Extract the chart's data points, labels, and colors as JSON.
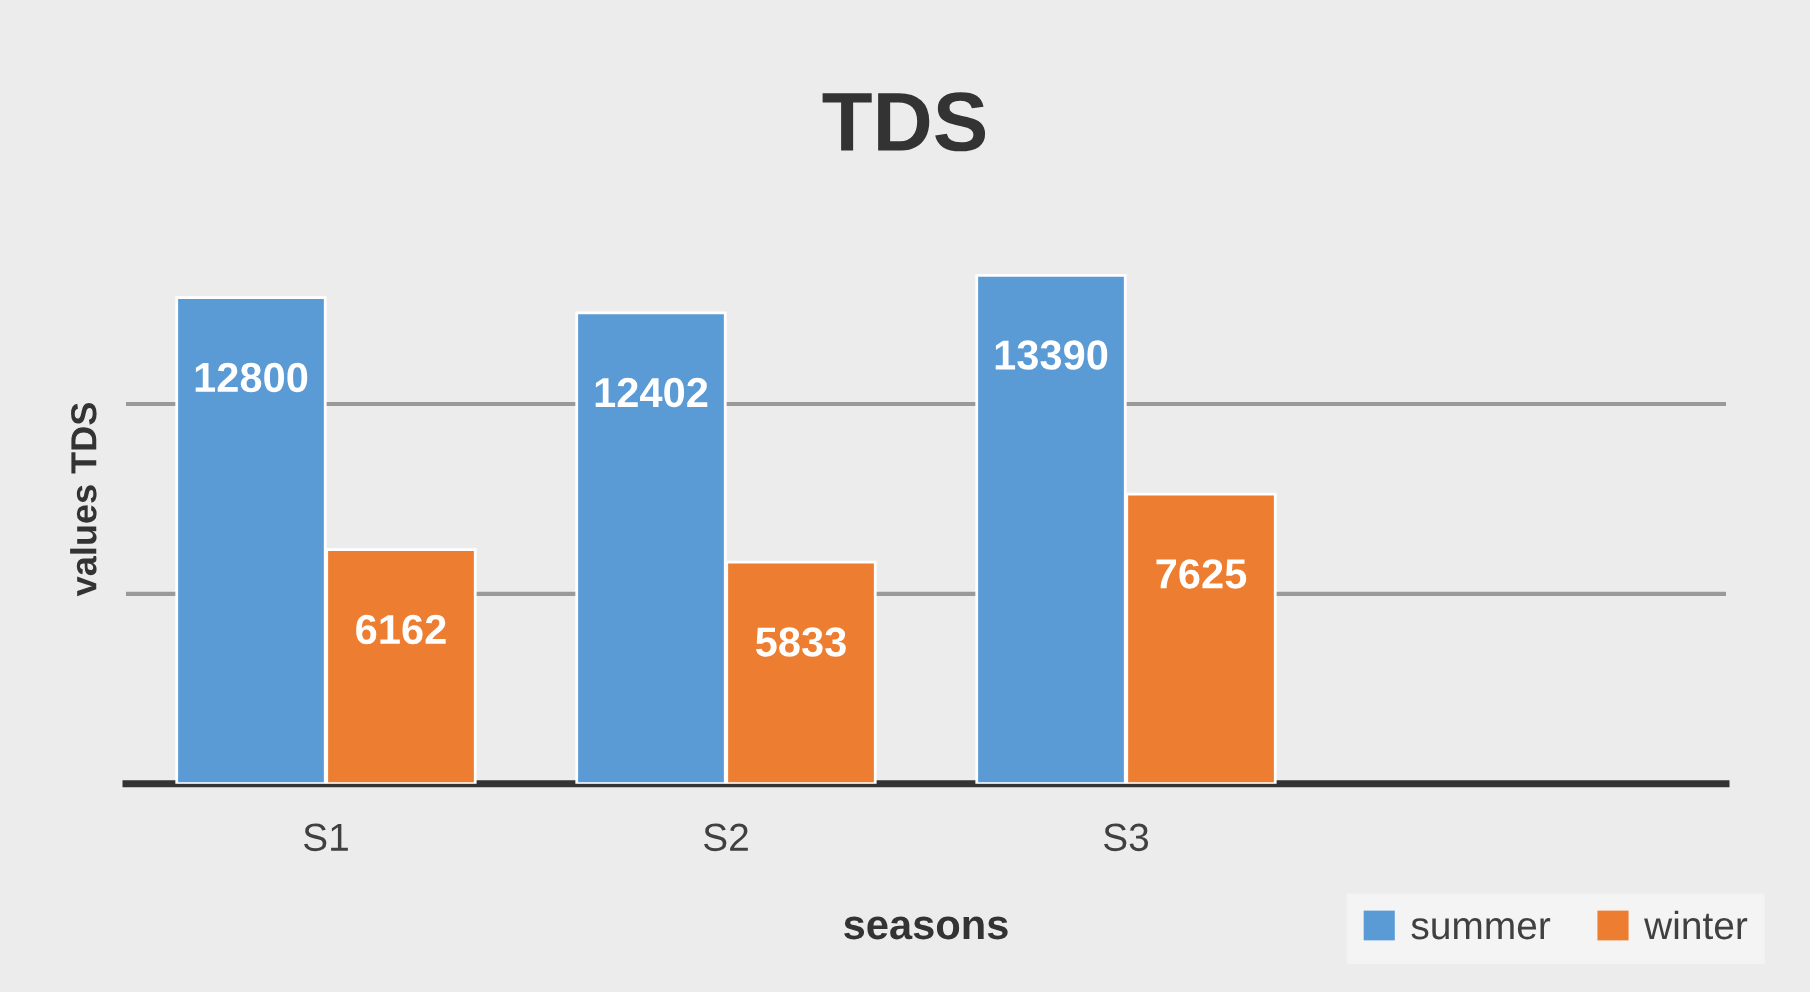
{
  "chart_data": {
    "type": "bar",
    "title": "TDS",
    "xlabel": "seasons",
    "ylabel": "values TDS",
    "categories": [
      "S1",
      "S2",
      "S3",
      null
    ],
    "series": [
      {
        "name": "summer",
        "color": "#5b9bd5",
        "values": [
          12800,
          12402,
          13390,
          null
        ]
      },
      {
        "name": "winter",
        "color": "#ed7d31",
        "values": [
          6162,
          5833,
          7625,
          null
        ]
      }
    ],
    "ref_lines": [
      {
        "axis": "y",
        "value": 5000,
        "color": "#9a9a9a"
      },
      {
        "axis": "y",
        "value": 10000,
        "color": "#9a9a9a"
      }
    ],
    "legend": "bottom right",
    "tick_labels": "x",
    "data_labels": true
  }
}
